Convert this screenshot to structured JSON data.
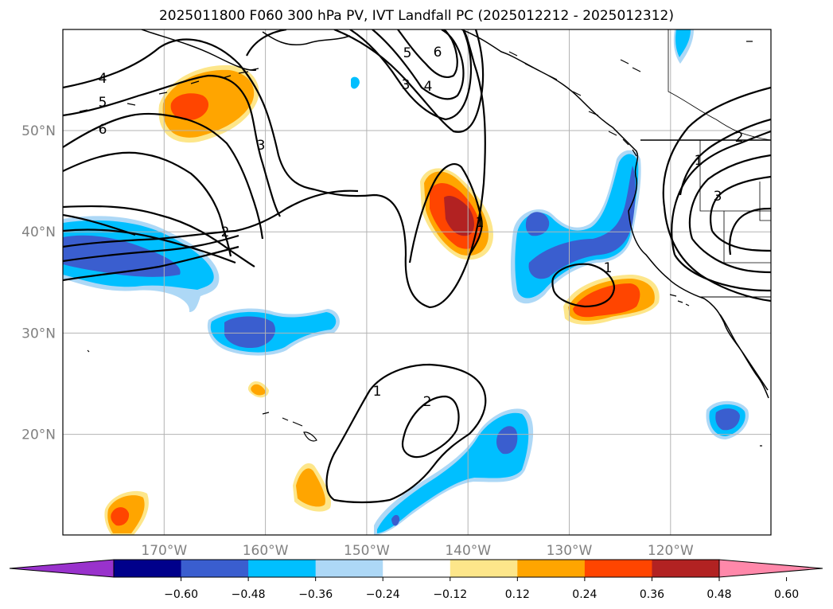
{
  "title": "2025011800 F060 300 hPa PV, IVT Landfall PC (2025012212 - 2025012312)",
  "map": {
    "lon_ticks": [
      {
        "label": "170°W",
        "value": -170
      },
      {
        "label": "160°W",
        "value": -160
      },
      {
        "label": "150°W",
        "value": -150
      },
      {
        "label": "140°W",
        "value": -140
      },
      {
        "label": "130°W",
        "value": -130
      },
      {
        "label": "120°W",
        "value": -120
      }
    ],
    "lat_ticks": [
      {
        "label": "50°N",
        "value": 50
      },
      {
        "label": "40°N",
        "value": 40
      },
      {
        "label": "30°N",
        "value": 30
      },
      {
        "label": "20°N",
        "value": 20
      }
    ],
    "tick_color": "#808080",
    "grid": true,
    "contour_labels": [
      "4",
      "5",
      "6",
      "5",
      "6",
      "3",
      "4",
      "3",
      "2",
      "1",
      "1",
      "2",
      "1",
      "2",
      "3",
      "1"
    ]
  },
  "colorbar": {
    "ticks": [
      "−0.60",
      "−0.48",
      "−0.36",
      "−0.24",
      "−0.12",
      "0.12",
      "0.24",
      "0.36",
      "0.48",
      "0.60"
    ],
    "colors": [
      "#9932cc",
      "#00008b",
      "#3a5ecf",
      "#00bfff",
      "#add8f6",
      "#ffffff",
      "#fde68a",
      "#ffa500",
      "#ff4500",
      "#b22222",
      "#ff88aa"
    ],
    "extend": "both"
  },
  "palette": {
    "dark_blue": "#3a5ecf",
    "cyan": "#00bfff",
    "light_blue": "#add8f6",
    "light_yellow": "#fde68a",
    "orange": "#ffa500",
    "red_orange": "#ff4500",
    "dark_red": "#b22222"
  }
}
